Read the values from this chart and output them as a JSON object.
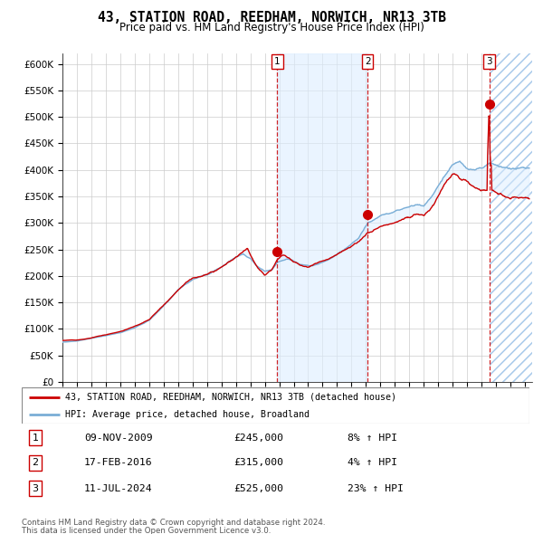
{
  "title": "43, STATION ROAD, REEDHAM, NORWICH, NR13 3TB",
  "subtitle": "Price paid vs. HM Land Registry's House Price Index (HPI)",
  "legend_line1": "43, STATION ROAD, REEDHAM, NORWICH, NR13 3TB (detached house)",
  "legend_line2": "HPI: Average price, detached house, Broadland",
  "sale1_date": "09-NOV-2009",
  "sale1_price": 245000,
  "sale1_hpi": "8% ↑ HPI",
  "sale2_date": "17-FEB-2016",
  "sale2_price": 315000,
  "sale2_hpi": "4% ↑ HPI",
  "sale3_date": "11-JUL-2024",
  "sale3_price": 525000,
  "sale3_hpi": "23% ↑ HPI",
  "footnote1": "Contains HM Land Registry data © Crown copyright and database right 2024.",
  "footnote2": "This data is licensed under the Open Government Licence v3.0.",
  "line_color_red": "#cc0000",
  "line_color_blue": "#7aaed6",
  "shade_color": "#ddeeff",
  "background_color": "#ffffff",
  "grid_color": "#cccccc",
  "ylim": [
    0,
    620000
  ],
  "yticks": [
    0,
    50000,
    100000,
    150000,
    200000,
    250000,
    300000,
    350000,
    400000,
    450000,
    500000,
    550000,
    600000
  ],
  "x_start_year": 1995.0,
  "x_end_year": 2027.5,
  "sale1_x": 2009.86,
  "sale2_x": 2016.12,
  "sale3_x": 2024.53
}
